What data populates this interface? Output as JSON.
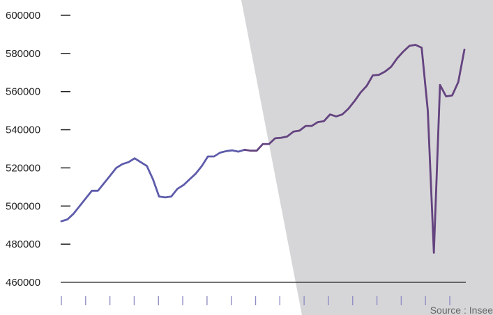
{
  "source_text": "Source : Insee",
  "colors": {
    "line_before": "#5e5cab",
    "line_after": "#64437f",
    "background_shape": "#d6d6d9",
    "axis": "#222222",
    "tick": "#8f8dc4"
  },
  "chart_data": {
    "type": "line",
    "title": "",
    "xlabel": "",
    "ylabel": "",
    "ylim": [
      460000,
      600000
    ],
    "y_ticks": [
      600000,
      580000,
      560000,
      540000,
      520000,
      500000,
      480000,
      460000
    ],
    "y_tick_labels": [
      "600000",
      "580000",
      "560000",
      "540000",
      "520000",
      "500000",
      "480000",
      "460000"
    ],
    "x_tick_count": 17,
    "grid": false,
    "legend": "none",
    "series": [
      {
        "values": [
          492000,
          493000,
          496000,
          500000,
          504000,
          508000,
          508000,
          512000,
          516000,
          520000,
          522000,
          523000,
          525000,
          523000,
          521000,
          514000,
          505000,
          504500,
          505000,
          509000,
          511000,
          514000,
          517000,
          521000,
          526000,
          526000,
          528000,
          528800,
          529200,
          528500,
          529500,
          529000,
          529000,
          532500,
          532500,
          535500,
          535800,
          536500,
          539000,
          539500,
          542000,
          542000,
          544000,
          544500,
          548000,
          547000,
          548000,
          551000,
          555000,
          559500,
          563000,
          568500,
          568800,
          570500,
          573000,
          577500,
          581000,
          584000,
          584500,
          583000,
          550000,
          475500,
          563500,
          557500,
          558000,
          565000,
          582000
        ],
        "color_change_index": 30
      }
    ]
  }
}
